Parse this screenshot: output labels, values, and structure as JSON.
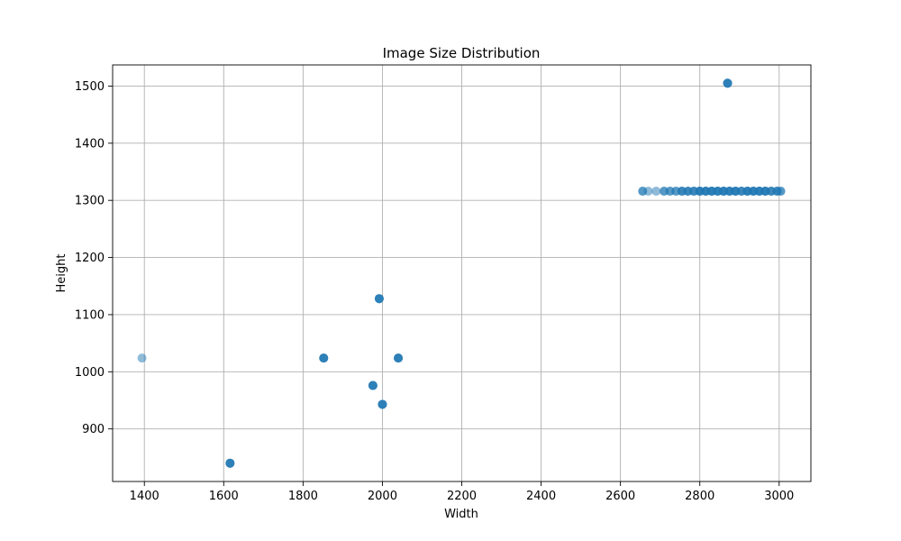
{
  "chart_data": {
    "type": "scatter",
    "title": "Image Size Distribution",
    "xlabel": "Width",
    "ylabel": "Height",
    "xlim": [
      1320,
      3080
    ],
    "ylim": [
      808,
      1537
    ],
    "xticks": [
      1400,
      1600,
      1800,
      2000,
      2200,
      2400,
      2600,
      2800,
      3000
    ],
    "yticks": [
      900,
      1000,
      1100,
      1200,
      1300,
      1400,
      1500
    ],
    "grid": true,
    "marker_color": "#1f77b4",
    "marker_alpha": 0.5,
    "points": [
      {
        "x": 1394,
        "y": 1024,
        "count": 1
      },
      {
        "x": 1616,
        "y": 840,
        "count": 4
      },
      {
        "x": 1852,
        "y": 1024,
        "count": 4
      },
      {
        "x": 1976,
        "y": 976,
        "count": 4
      },
      {
        "x": 1992,
        "y": 1128,
        "count": 4
      },
      {
        "x": 2000,
        "y": 943,
        "count": 4
      },
      {
        "x": 2040,
        "y": 1024,
        "count": 4
      },
      {
        "x": 2870,
        "y": 1505,
        "count": 4
      },
      {
        "x": 2656,
        "y": 1316,
        "count": 2
      },
      {
        "x": 2670,
        "y": 1316,
        "count": 1
      },
      {
        "x": 2690,
        "y": 1316,
        "count": 1
      },
      {
        "x": 2710,
        "y": 1316,
        "count": 2
      },
      {
        "x": 2725,
        "y": 1316,
        "count": 2
      },
      {
        "x": 2740,
        "y": 1316,
        "count": 2
      },
      {
        "x": 2755,
        "y": 1316,
        "count": 3
      },
      {
        "x": 2770,
        "y": 1316,
        "count": 3
      },
      {
        "x": 2785,
        "y": 1316,
        "count": 3
      },
      {
        "x": 2800,
        "y": 1316,
        "count": 4
      },
      {
        "x": 2815,
        "y": 1316,
        "count": 4
      },
      {
        "x": 2830,
        "y": 1316,
        "count": 4
      },
      {
        "x": 2845,
        "y": 1316,
        "count": 4
      },
      {
        "x": 2860,
        "y": 1316,
        "count": 4
      },
      {
        "x": 2875,
        "y": 1316,
        "count": 4
      },
      {
        "x": 2890,
        "y": 1316,
        "count": 4
      },
      {
        "x": 2905,
        "y": 1316,
        "count": 3
      },
      {
        "x": 2920,
        "y": 1316,
        "count": 4
      },
      {
        "x": 2935,
        "y": 1316,
        "count": 4
      },
      {
        "x": 2950,
        "y": 1316,
        "count": 4
      },
      {
        "x": 2965,
        "y": 1316,
        "count": 4
      },
      {
        "x": 2980,
        "y": 1316,
        "count": 3
      },
      {
        "x": 2995,
        "y": 1316,
        "count": 3
      },
      {
        "x": 3004,
        "y": 1316,
        "count": 2
      }
    ]
  }
}
